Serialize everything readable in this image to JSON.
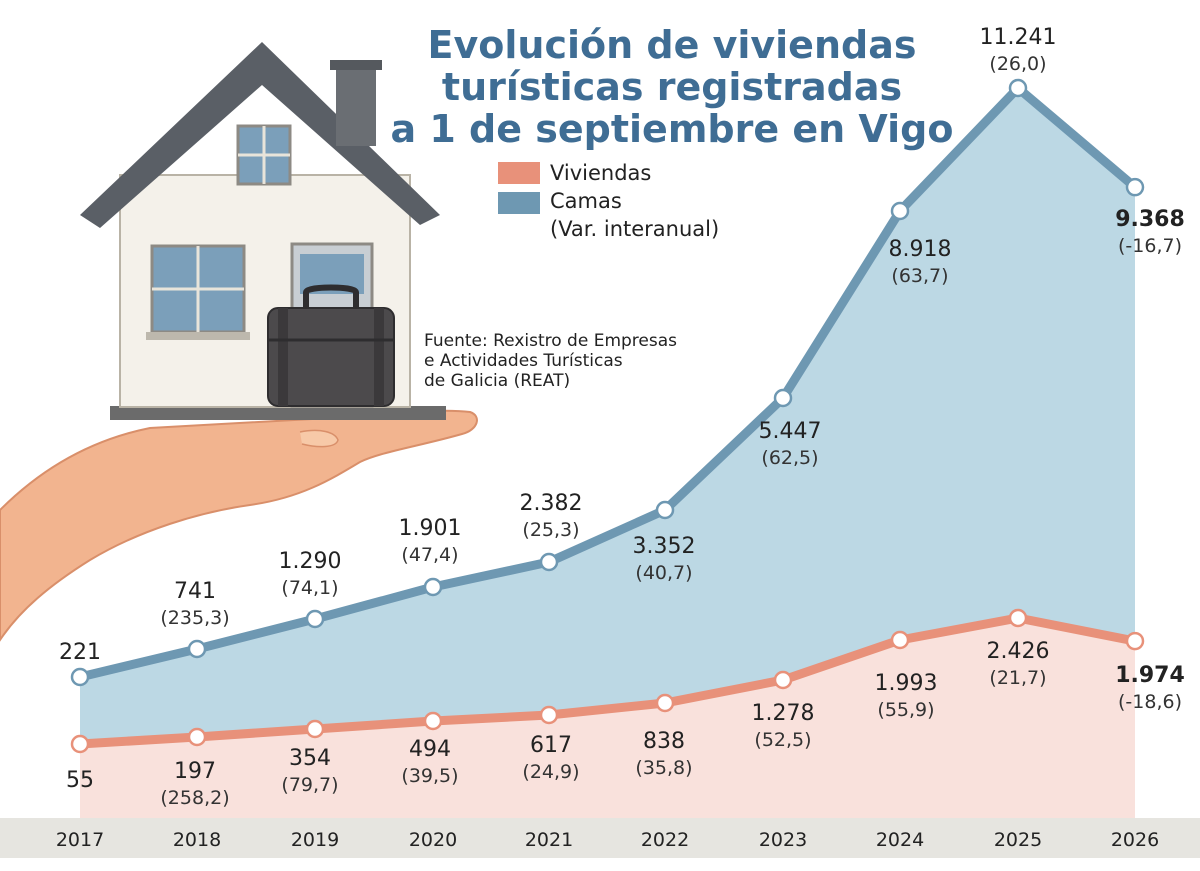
{
  "title_lines": [
    "Evolución de viviendas",
    "turísticas registradas",
    "a 1 de septiembre en Vigo"
  ],
  "legend": {
    "viviendas": "Viviendas",
    "camas": "Camas",
    "note": "(Var. interanual)"
  },
  "source_lines": [
    "Fuente: Rexistro de Empresas",
    "e Actividades Turísticas",
    "de Galicia (REAT)"
  ],
  "colors": {
    "camas_line": "#6e98b2",
    "camas_fill": "#bcd8e4",
    "viviendas_line": "#e8917a",
    "viviendas_fill": "#f9e1dc",
    "axis_band": "#e6e5e0",
    "title": "#3f6d94"
  },
  "illustration": "house-on-hand-with-suitcase",
  "chart_data": {
    "type": "area",
    "title": "Evolución de viviendas turísticas registradas a 1 de septiembre en Vigo",
    "categories": [
      "2017",
      "2018",
      "2019",
      "2020",
      "2021",
      "2022",
      "2023",
      "2024",
      "2025",
      "2026"
    ],
    "series": [
      {
        "name": "Camas",
        "values": [
          221,
          741,
          1290,
          1901,
          2382,
          3352,
          5447,
          8918,
          11241,
          9368
        ],
        "labels": [
          "221",
          "741",
          "1.290",
          "1.901",
          "2.382",
          "3.352",
          "5.447",
          "8.918",
          "11.241",
          "9.368"
        ],
        "var_labels": [
          "",
          "(235,3)",
          "(74,1)",
          "(47,4)",
          "(25,3)",
          "(40,7)",
          "(62,5)",
          "(63,7)",
          "(26,0)",
          "(-16,7)"
        ]
      },
      {
        "name": "Viviendas",
        "values": [
          55,
          197,
          354,
          494,
          617,
          838,
          1278,
          1993,
          2426,
          1974
        ],
        "labels": [
          "55",
          "197",
          "354",
          "494",
          "617",
          "838",
          "1.278",
          "1.993",
          "2.426",
          "1.974"
        ],
        "var_labels": [
          "",
          "(258,2)",
          "(79,7)",
          "(39,5)",
          "(24,9)",
          "(35,8)",
          "(52,5)",
          "(55,9)",
          "(21,7)",
          "(-18,6)"
        ]
      }
    ]
  }
}
